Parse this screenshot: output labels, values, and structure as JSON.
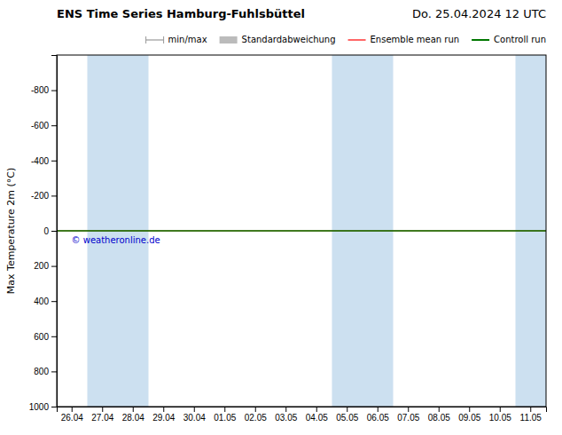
{
  "chart_data": {
    "type": "line",
    "title": "ENS Time Series Hamburg-Fuhlsbüttel",
    "subtitle": "Do. 25.04.2024 12 UTC",
    "y_label": "Max Temperature 2m (°C)",
    "categories": [
      "26.04",
      "27.04",
      "28.04",
      "29.04",
      "30.04",
      "01.05",
      "02.05",
      "03.05",
      "04.05",
      "05.05",
      "06.05",
      "07.05",
      "08.05",
      "09.05",
      "10.05",
      "11.05"
    ],
    "ylim": [
      1000,
      -1000
    ],
    "yticks": [
      -800,
      -600,
      -400,
      -200,
      0,
      200,
      400,
      600,
      800,
      1000
    ],
    "grid": false,
    "legend": "upper right",
    "hline": 0,
    "shaded": {
      "categories": [
        "27.04",
        "28.04",
        "05.05",
        "06.05",
        "11.05"
      ],
      "color": "#cce0f0"
    },
    "annotations": [
      {
        "text": "© weatheronline.de",
        "color": "#0000cc"
      }
    ],
    "series": [
      {
        "name": "min/max",
        "color": "#999999",
        "type": "line",
        "marker": "vline"
      },
      {
        "name": "Standardabweichung",
        "color": "#bbbbbb",
        "type": "area"
      },
      {
        "name": "Ensemble mean run",
        "color": "#ff0000",
        "type": "line"
      },
      {
        "name": "Controll run",
        "color": "#007700",
        "type": "line"
      }
    ]
  }
}
